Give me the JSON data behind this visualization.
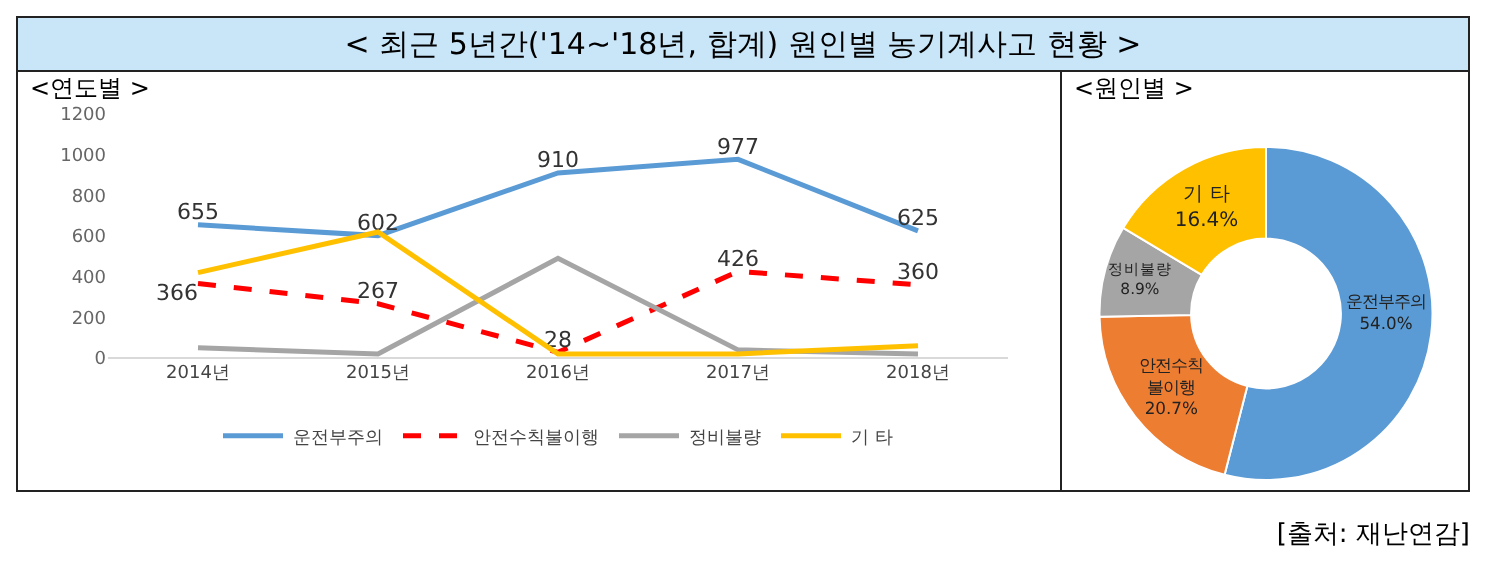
{
  "chart_data": [
    {
      "type": "line",
      "title": "< 최근 5년간('14~'18년, 합계) 원인별 농기계사고 현황 >",
      "subtitle": "<연도별 >",
      "categories": [
        "2014년",
        "2015년",
        "2016년",
        "2017년",
        "2018년"
      ],
      "series": [
        {
          "name": "운전부주의",
          "color": "#5b9bd5",
          "values": [
            655,
            602,
            910,
            977,
            625
          ],
          "value_labels": [
            "655",
            "602",
            "910",
            "977",
            "625"
          ],
          "line_style": "solid"
        },
        {
          "name": "안전수칙불이행",
          "color": "#ff0000",
          "values": [
            366,
            267,
            28,
            426,
            360
          ],
          "value_labels": [
            "366",
            "267",
            "28",
            "426",
            "360"
          ],
          "line_style": "dashed"
        },
        {
          "name": "정비불량",
          "color": "#a5a5a5",
          "values": [
            50,
            20,
            490,
            40,
            20
          ],
          "line_style": "solid"
        },
        {
          "name": "기 타",
          "color": "#ffc000",
          "values": [
            420,
            620,
            20,
            20,
            60
          ],
          "line_style": "solid"
        }
      ],
      "ylim": [
        0,
        1200
      ],
      "yticks": [
        0,
        200,
        400,
        600,
        800,
        1000,
        1200
      ],
      "grid": false,
      "legend": "bottom",
      "marker": "none"
    },
    {
      "type": "donut",
      "title": "<원인별 >",
      "categories": [
        "운전부주의",
        "안전수칙\n불이행",
        "정비불량",
        "기 타"
      ],
      "values": [
        54.0,
        20.7,
        8.9,
        16.4
      ],
      "value_labels": [
        "54.0%",
        "20.7%",
        "8.9%",
        "16.4%"
      ],
      "colors": [
        "#5b9bd5",
        "#ed7d31",
        "#a5a5a5",
        "#ffc000"
      ],
      "annotations": [
        "[출처: 재난연감]"
      ]
    }
  ]
}
